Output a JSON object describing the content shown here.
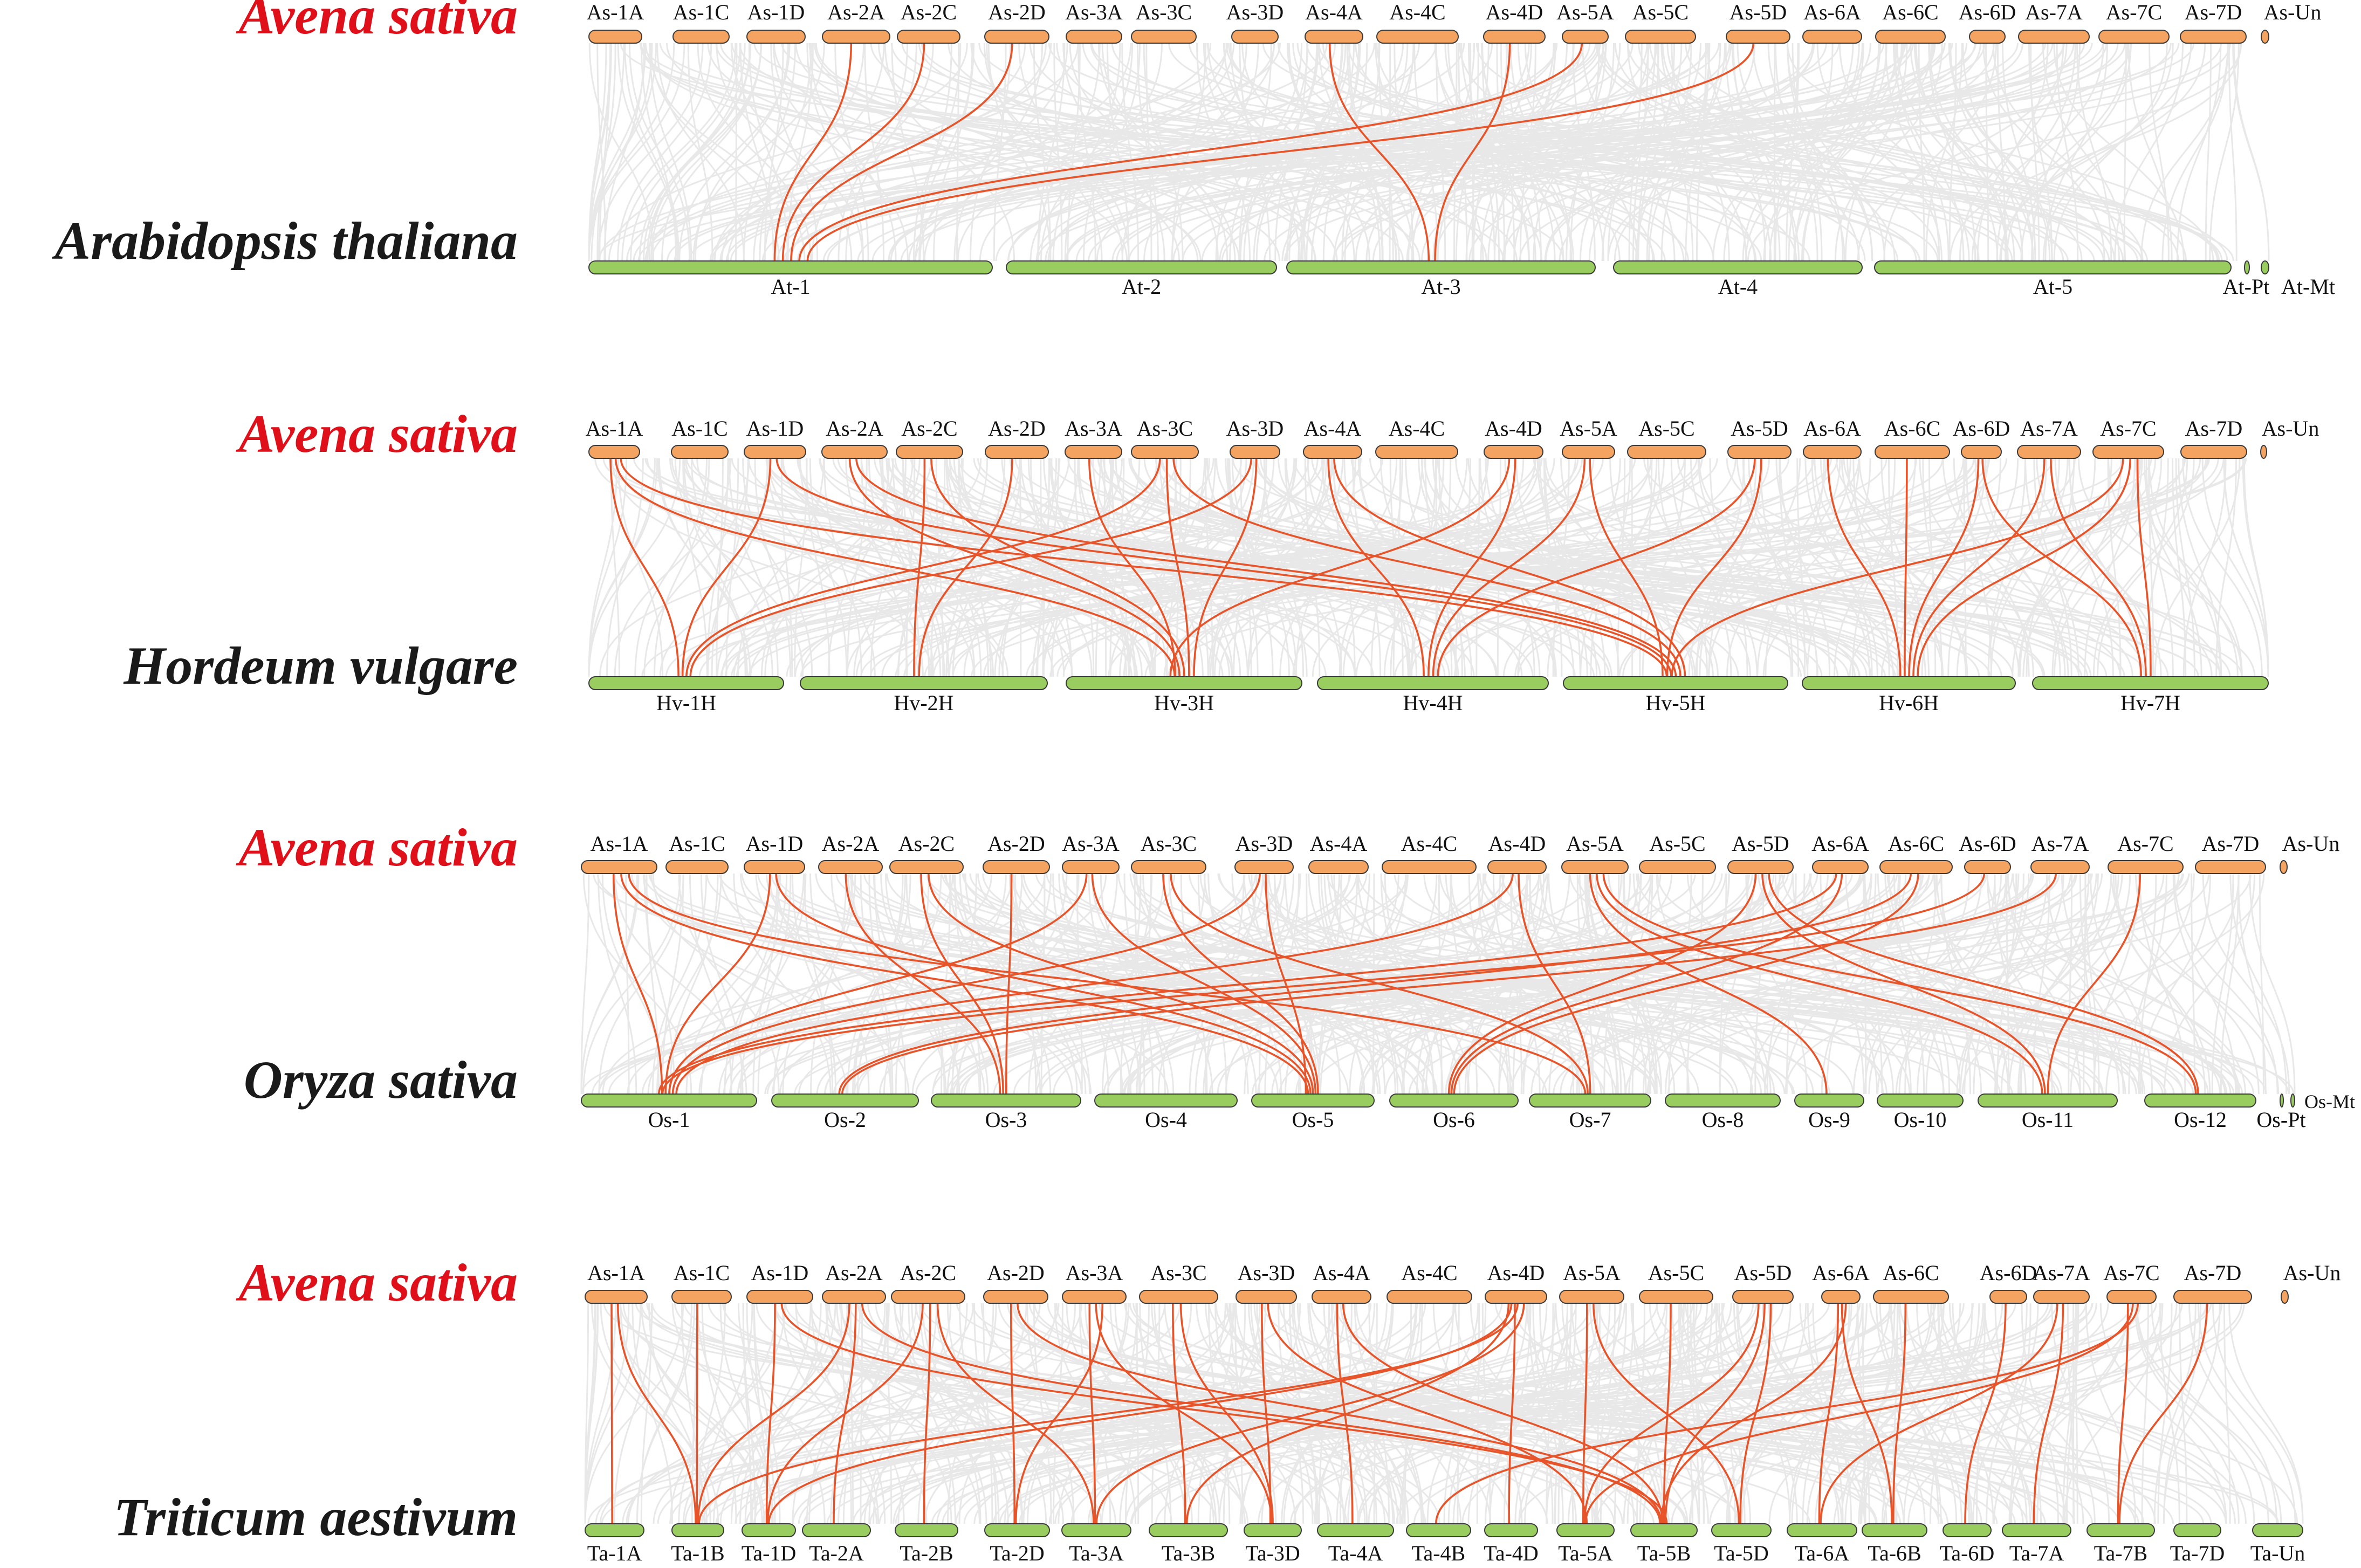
{
  "colors": {
    "avena_chr": "#F4A460",
    "other_chr": "#9ACD60",
    "chr_stroke": "#3a3a3a",
    "background_links": "#e5e5e5",
    "highlight_links": "#E8542A",
    "avena_title": "#E0101A",
    "other_title": "#1a1a1a"
  },
  "avena_chromosomes": [
    "As-1A",
    "As-1C",
    "As-1D",
    "As-2A",
    "As-2C",
    "As-2D",
    "As-3A",
    "As-3C",
    "As-3D",
    "As-4A",
    "As-4C",
    "As-4D",
    "As-5A",
    "As-5C",
    "As-5D",
    "As-6A",
    "As-6C",
    "As-6D",
    "As-7A",
    "As-7C",
    "As-7D",
    "As-Un"
  ],
  "panels": [
    {
      "top_species": "Avena sativa",
      "bottom_species": "Arabidopsis thaliana",
      "bottom_chromosomes": [
        "At-1",
        "At-2",
        "At-3",
        "At-4",
        "At-5",
        "At-Pt",
        "At-Mt"
      ],
      "links": [
        [
          "As-2A",
          "At-1"
        ],
        [
          "As-2C",
          "At-1"
        ],
        [
          "As-2D",
          "At-1"
        ],
        [
          "As-5A",
          "At-1"
        ],
        [
          "As-5D",
          "At-1"
        ],
        [
          "As-4A",
          "At-3"
        ],
        [
          "As-4D",
          "At-3"
        ]
      ]
    },
    {
      "top_species": "Avena sativa",
      "bottom_species": "Hordeum vulgare",
      "bottom_chromosomes": [
        "Hv-1H",
        "Hv-2H",
        "Hv-3H",
        "Hv-4H",
        "Hv-5H",
        "Hv-6H",
        "Hv-7H"
      ],
      "links": [
        [
          "As-1A",
          "Hv-1H"
        ],
        [
          "As-1D",
          "Hv-1H"
        ],
        [
          "As-3C",
          "Hv-1H"
        ],
        [
          "As-3D",
          "Hv-1H"
        ],
        [
          "As-2C",
          "Hv-2H"
        ],
        [
          "As-2D",
          "Hv-2H"
        ],
        [
          "As-1A",
          "Hv-3H"
        ],
        [
          "As-2A",
          "Hv-3H"
        ],
        [
          "As-2C",
          "Hv-3H"
        ],
        [
          "As-3C",
          "Hv-3H"
        ],
        [
          "As-3D",
          "Hv-3H"
        ],
        [
          "As-4D",
          "Hv-3H"
        ],
        [
          "As-3A",
          "Hv-3H"
        ],
        [
          "As-4A",
          "Hv-4H"
        ],
        [
          "As-4D",
          "Hv-4H"
        ],
        [
          "As-5A",
          "Hv-4H"
        ],
        [
          "As-5D",
          "Hv-4H"
        ],
        [
          "As-1A",
          "Hv-5H"
        ],
        [
          "As-1D",
          "Hv-5H"
        ],
        [
          "As-2A",
          "Hv-5H"
        ],
        [
          "As-3C",
          "Hv-5H"
        ],
        [
          "As-4A",
          "Hv-5H"
        ],
        [
          "As-5A",
          "Hv-5H"
        ],
        [
          "As-5D",
          "Hv-5H"
        ],
        [
          "As-7C",
          "Hv-5H"
        ],
        [
          "As-6A",
          "Hv-6H"
        ],
        [
          "As-6C",
          "Hv-6H"
        ],
        [
          "As-6D",
          "Hv-6H"
        ],
        [
          "As-7A",
          "Hv-6H"
        ],
        [
          "As-7C",
          "Hv-6H"
        ],
        [
          "As-6D",
          "Hv-7H"
        ],
        [
          "As-7A",
          "Hv-7H"
        ],
        [
          "As-7C",
          "Hv-7H"
        ]
      ]
    },
    {
      "top_species": "Avena sativa",
      "bottom_species": "Oryza sativa",
      "bottom_chromosomes": [
        "Os-1",
        "Os-2",
        "Os-3",
        "Os-4",
        "Os-5",
        "Os-6",
        "Os-7",
        "Os-8",
        "Os-9",
        "Os-10",
        "Os-11",
        "Os-12",
        "Os-Pt",
        "Os-Mt"
      ],
      "links": [
        [
          "As-1A",
          "Os-1"
        ],
        [
          "As-1D",
          "Os-1"
        ],
        [
          "As-3A",
          "Os-1"
        ],
        [
          "As-3D",
          "Os-1"
        ],
        [
          "As-4D",
          "Os-1"
        ],
        [
          "As-6A",
          "Os-1"
        ],
        [
          "As-6D",
          "Os-1"
        ],
        [
          "As-6C",
          "Os-2"
        ],
        [
          "As-7A",
          "Os-2"
        ],
        [
          "As-2A",
          "Os-3"
        ],
        [
          "As-2C",
          "Os-3"
        ],
        [
          "As-2D",
          "Os-3"
        ],
        [
          "As-1A",
          "Os-5"
        ],
        [
          "As-1D",
          "Os-5"
        ],
        [
          "As-2C",
          "Os-5"
        ],
        [
          "As-3A",
          "Os-5"
        ],
        [
          "As-3C",
          "Os-5"
        ],
        [
          "As-3D",
          "Os-5"
        ],
        [
          "As-5D",
          "Os-6"
        ],
        [
          "As-6A",
          "Os-6"
        ],
        [
          "As-6C",
          "Os-6"
        ],
        [
          "As-1A",
          "Os-7"
        ],
        [
          "As-3C",
          "Os-7"
        ],
        [
          "As-4D",
          "Os-7"
        ],
        [
          "As-5A",
          "Os-9"
        ],
        [
          "As-5A",
          "Os-11"
        ],
        [
          "As-5D",
          "Os-11"
        ],
        [
          "As-7C",
          "Os-11"
        ],
        [
          "As-5A",
          "Os-12"
        ],
        [
          "As-5D",
          "Os-12"
        ]
      ]
    },
    {
      "top_species": "Avena sativa",
      "bottom_species": "Triticum aestivum",
      "bottom_chromosomes": [
        "Ta-1A",
        "Ta-1B",
        "Ta-1D",
        "Ta-2A",
        "Ta-2B",
        "Ta-2D",
        "Ta-3A",
        "Ta-3B",
        "Ta-3D",
        "Ta-4A",
        "Ta-4B",
        "Ta-4D",
        "Ta-5A",
        "Ta-5B",
        "Ta-5D",
        "Ta-6A",
        "Ta-6B",
        "Ta-6D",
        "Ta-7A",
        "Ta-7B",
        "Ta-7D",
        "Ta-Un"
      ],
      "links": [
        [
          "As-1A",
          "Ta-1A"
        ],
        [
          "As-1A",
          "Ta-1B"
        ],
        [
          "As-1C",
          "Ta-1B"
        ],
        [
          "As-1D",
          "Ta-1D"
        ],
        [
          "As-2A",
          "Ta-1B"
        ],
        [
          "As-2C",
          "Ta-1D"
        ],
        [
          "As-4D",
          "Ta-1D"
        ],
        [
          "As-4D",
          "Ta-1B"
        ],
        [
          "As-2A",
          "Ta-2A"
        ],
        [
          "As-2C",
          "Ta-2B"
        ],
        [
          "As-2D",
          "Ta-2D"
        ],
        [
          "As-2C",
          "Ta-3A"
        ],
        [
          "As-2D",
          "Ta-5B"
        ],
        [
          "As-3A",
          "Ta-3A"
        ],
        [
          "As-3C",
          "Ta-3B"
        ],
        [
          "As-3D",
          "Ta-3D"
        ],
        [
          "As-3A",
          "Ta-3D"
        ],
        [
          "As-3C",
          "Ta-3D"
        ],
        [
          "As-4D",
          "Ta-3A"
        ],
        [
          "As-4D",
          "Ta-3B"
        ],
        [
          "As-4A",
          "Ta-4A"
        ],
        [
          "As-4A",
          "Ta-5B"
        ],
        [
          "As-4D",
          "Ta-4D"
        ],
        [
          "As-5A",
          "Ta-5A"
        ],
        [
          "As-5A",
          "Ta-5D"
        ],
        [
          "As-5C",
          "Ta-5B"
        ],
        [
          "As-5D",
          "Ta-5A"
        ],
        [
          "As-5D",
          "Ta-5B"
        ],
        [
          "As-5D",
          "Ta-5D"
        ],
        [
          "As-6A",
          "Ta-6A"
        ],
        [
          "As-6A",
          "Ta-6B"
        ],
        [
          "As-6C",
          "Ta-6B"
        ],
        [
          "As-6D",
          "Ta-6D"
        ],
        [
          "As-7A",
          "Ta-6A"
        ],
        [
          "As-7A",
          "Ta-7A"
        ],
        [
          "As-7C",
          "Ta-7B"
        ],
        [
          "As-7C",
          "Ta-5A"
        ],
        [
          "As-7C",
          "Ta-4B"
        ],
        [
          "As-7D",
          "Ta-7B"
        ],
        [
          "As-1D",
          "Ta-5B"
        ],
        [
          "As-2A",
          "Ta-5B"
        ],
        [
          "As-3D",
          "Ta-5A"
        ],
        [
          "As-6A",
          "Ta-5B"
        ],
        [
          "As-3A",
          "Ta-2D"
        ]
      ]
    }
  ]
}
